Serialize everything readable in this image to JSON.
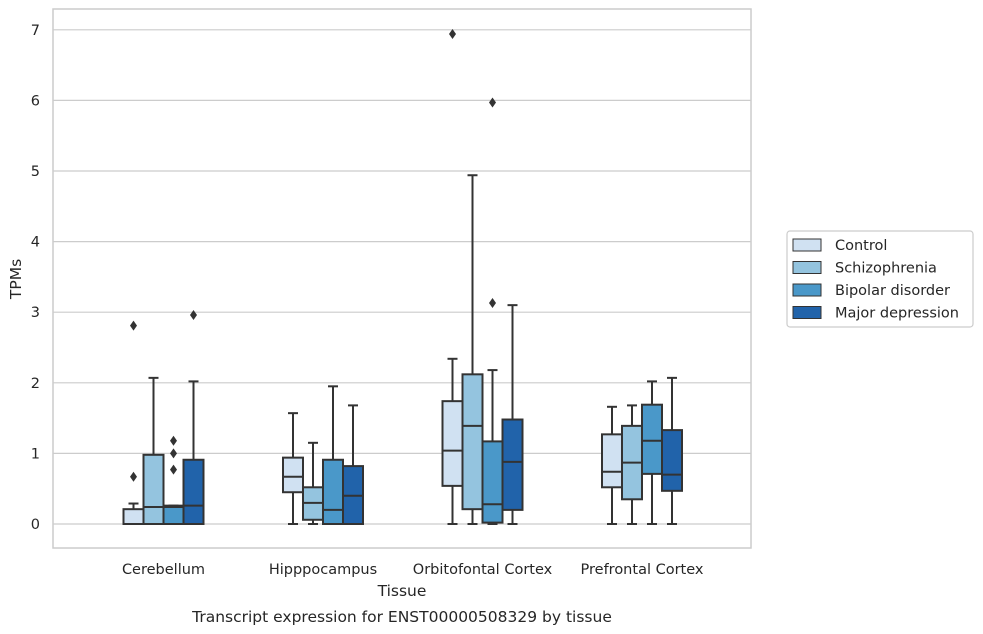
{
  "chart_data": {
    "type": "box",
    "xlabel": "Tissue",
    "ylabel": "TPMs",
    "caption": "Transcript expression for ENST00000508329 by tissue",
    "ylim": [
      -0.33,
      7.3
    ],
    "yticks": [
      "0",
      "1",
      "2",
      "3",
      "4",
      "5",
      "6",
      "7"
    ],
    "grid": "horizontal",
    "legend_position": "right",
    "categories": [
      "Cerebellum",
      "Hipppocampus",
      "Orbitofontal Cortex",
      "Prefrontal Cortex"
    ],
    "series": [
      {
        "name": "Control",
        "color": "#d0e1f2",
        "boxes": [
          {
            "whislo": 0,
            "q1": 0,
            "med": 0.0,
            "q3": 0.21,
            "whishi": 0.29,
            "fliers": [
              0.67,
              2.81
            ]
          },
          {
            "whislo": 0,
            "q1": 0.45,
            "med": 0.67,
            "q3": 0.94,
            "whishi": 1.57,
            "fliers": []
          },
          {
            "whislo": 0,
            "q1": 0.54,
            "med": 1.04,
            "q3": 1.74,
            "whishi": 2.34,
            "fliers": [
              6.94
            ]
          },
          {
            "whislo": 0,
            "q1": 0.52,
            "med": 0.74,
            "q3": 1.27,
            "whishi": 1.66,
            "fliers": []
          }
        ]
      },
      {
        "name": "Schizophrenia",
        "color": "#94c4df",
        "boxes": [
          {
            "whislo": 0,
            "q1": 0,
            "med": 0.24,
            "q3": 0.98,
            "whishi": 2.07,
            "fliers": []
          },
          {
            "whislo": 0,
            "q1": 0.06,
            "med": 0.3,
            "q3": 0.52,
            "whishi": 1.15,
            "fliers": []
          },
          {
            "whislo": 0,
            "q1": 0.21,
            "med": 1.39,
            "q3": 2.12,
            "whishi": 4.94,
            "fliers": []
          },
          {
            "whislo": 0,
            "q1": 0.35,
            "med": 0.87,
            "q3": 1.39,
            "whishi": 1.68,
            "fliers": []
          }
        ]
      },
      {
        "name": "Bipolar disorder",
        "color": "#4a98c9",
        "boxes": [
          {
            "whislo": 0,
            "q1": 0,
            "med": 0.24,
            "q3": 0.26,
            "whishi": 0.26,
            "fliers": [
              0.77,
              1.0,
              1.18
            ]
          },
          {
            "whislo": 0,
            "q1": 0,
            "med": 0.2,
            "q3": 0.91,
            "whishi": 1.95,
            "fliers": []
          },
          {
            "whislo": 0,
            "q1": 0.02,
            "med": 0.28,
            "q3": 1.17,
            "whishi": 2.18,
            "fliers": [
              3.13,
              5.97
            ]
          },
          {
            "whislo": 0,
            "q1": 0.71,
            "med": 1.18,
            "q3": 1.69,
            "whishi": 2.02,
            "fliers": []
          }
        ]
      },
      {
        "name": "Major depression",
        "color": "#2163aa",
        "boxes": [
          {
            "whislo": 0,
            "q1": 0,
            "med": 0.26,
            "q3": 0.91,
            "whishi": 2.02,
            "fliers": [
              2.96
            ]
          },
          {
            "whislo": 0,
            "q1": 0,
            "med": 0.4,
            "q3": 0.82,
            "whishi": 1.68,
            "fliers": []
          },
          {
            "whislo": 0,
            "q1": 0.2,
            "med": 0.88,
            "q3": 1.48,
            "whishi": 3.1,
            "fliers": []
          },
          {
            "whislo": 0,
            "q1": 0.47,
            "med": 0.7,
            "q3": 1.33,
            "whishi": 2.07,
            "fliers": []
          }
        ]
      }
    ]
  },
  "colors": {
    "axis": "#cccccc",
    "grid": "#cccccc",
    "box_edge": "#333333"
  }
}
